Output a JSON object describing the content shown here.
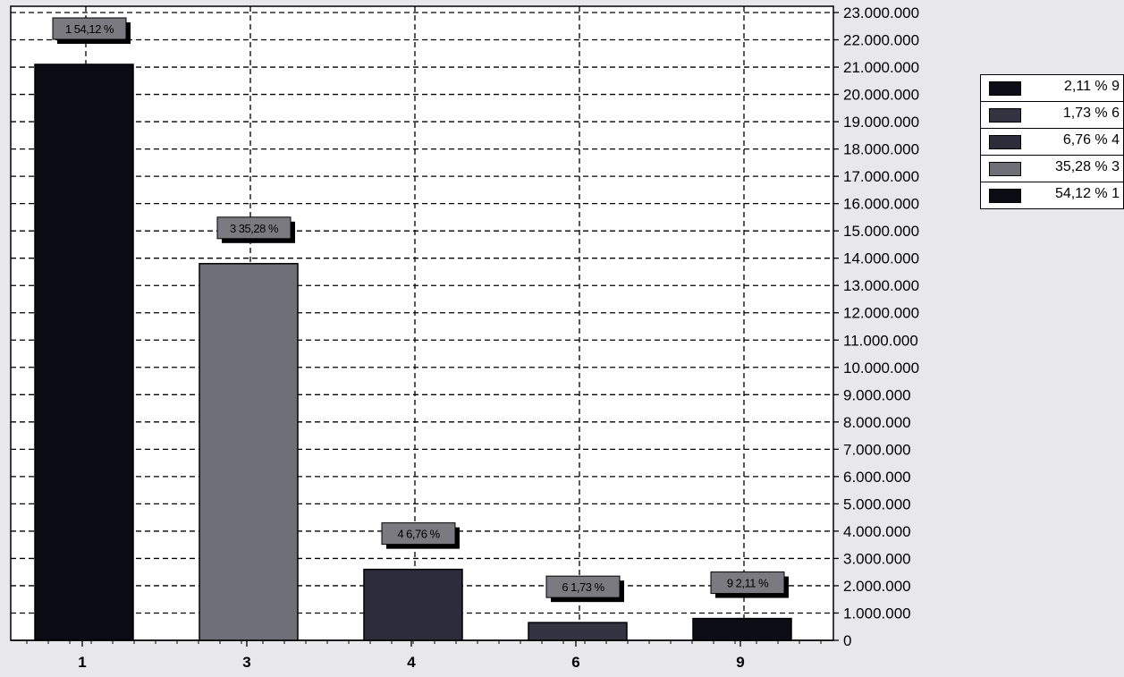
{
  "chart_data": {
    "type": "bar",
    "categories": [
      "1",
      "3",
      "4",
      "6",
      "9"
    ],
    "values": [
      21100000,
      13800000,
      2600000,
      650000,
      800000
    ],
    "data_labels": [
      "1 54,12 %",
      "3 35,28 %",
      "4 6,76 %",
      "6 1,73 %",
      "9 2,11 %"
    ],
    "colors": [
      "#0b0b14",
      "#6e6e76",
      "#2c2c3a",
      "#333342",
      "#0d0d18"
    ],
    "ylim": [
      0,
      23000000
    ],
    "yticks": [
      "0",
      "1.000.000",
      "2.000.000",
      "3.000.000",
      "4.000.000",
      "5.000.000",
      "6.000.000",
      "7.000.000",
      "8.000.000",
      "9.000.000",
      "10.000.000",
      "11.000.000",
      "12.000.000",
      "13.000.000",
      "14.000.000",
      "15.000.000",
      "16.000.000",
      "17.000.000",
      "18.000.000",
      "19.000.000",
      "20.000.000",
      "21.000.000",
      "22.000.000",
      "23.000.000"
    ],
    "y_axis_side": "right",
    "grid": true,
    "legend_position": "right",
    "title": "",
    "xlabel": "",
    "ylabel": ""
  },
  "legend": {
    "items": [
      {
        "label": "2,11 % 9",
        "color": "#0d0d18"
      },
      {
        "label": "1,73 % 6",
        "color": "#333342"
      },
      {
        "label": "6,76 % 4",
        "color": "#2c2c3a"
      },
      {
        "label": "35,28 % 3",
        "color": "#6e6e76"
      },
      {
        "label": "54,12 % 1",
        "color": "#0b0b14"
      }
    ]
  }
}
